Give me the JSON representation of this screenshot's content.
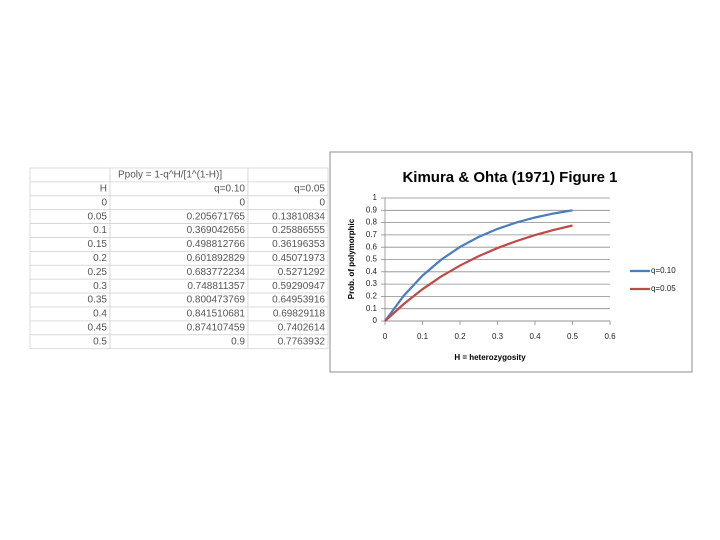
{
  "table": {
    "formula": "Ppoly = 1-q^H/[1^(1-H)]",
    "columns": [
      "H",
      "q=0.10",
      "q=0.05"
    ],
    "rows": [
      [
        0,
        0,
        0
      ],
      [
        0.05,
        0.205671765,
        0.13810834
      ],
      [
        0.1,
        0.369042656,
        0.25886555
      ],
      [
        0.15,
        0.498812766,
        0.36196353
      ],
      [
        0.2,
        0.601892829,
        0.45071973
      ],
      [
        0.25,
        0.683772234,
        0.5271292
      ],
      [
        0.3,
        0.748811357,
        0.59290947
      ],
      [
        0.35,
        0.800473769,
        0.64953916
      ],
      [
        0.4,
        0.841510681,
        0.69829118
      ],
      [
        0.45,
        0.874107459,
        0.7402614
      ],
      [
        0.5,
        0.9,
        0.7763932
      ]
    ]
  },
  "chart_data": {
    "type": "line",
    "title": "Kimura & Ohta (1971) Figure 1",
    "x_label": "H = heterozygosity",
    "y_label": "Prob. of polymorphic",
    "x": [
      0,
      0.05,
      0.1,
      0.15,
      0.2,
      0.25,
      0.3,
      0.35,
      0.4,
      0.45,
      0.5
    ],
    "series": [
      {
        "name": "q=0.10",
        "color": "#4a7ebb",
        "values": [
          0,
          0.205671765,
          0.369042656,
          0.498812766,
          0.601892829,
          0.683772234,
          0.748811357,
          0.800473769,
          0.841510681,
          0.874107459,
          0.9
        ]
      },
      {
        "name": "q=0.05",
        "color": "#be4b48",
        "values": [
          0,
          0.13810834,
          0.25886555,
          0.36196353,
          0.45071973,
          0.5271292,
          0.59290947,
          0.64953916,
          0.69829118,
          0.7402614,
          0.7763932
        ]
      }
    ],
    "xlim": [
      0,
      0.6
    ],
    "xticks": [
      0,
      0.1,
      0.2,
      0.3,
      0.4,
      0.5,
      0.6
    ],
    "ylim": [
      0,
      1
    ],
    "yticks": [
      0,
      0.1,
      0.2,
      0.3,
      0.4,
      0.5,
      0.6,
      0.7,
      0.8,
      0.9,
      1
    ],
    "grid": true,
    "legend": "right"
  }
}
